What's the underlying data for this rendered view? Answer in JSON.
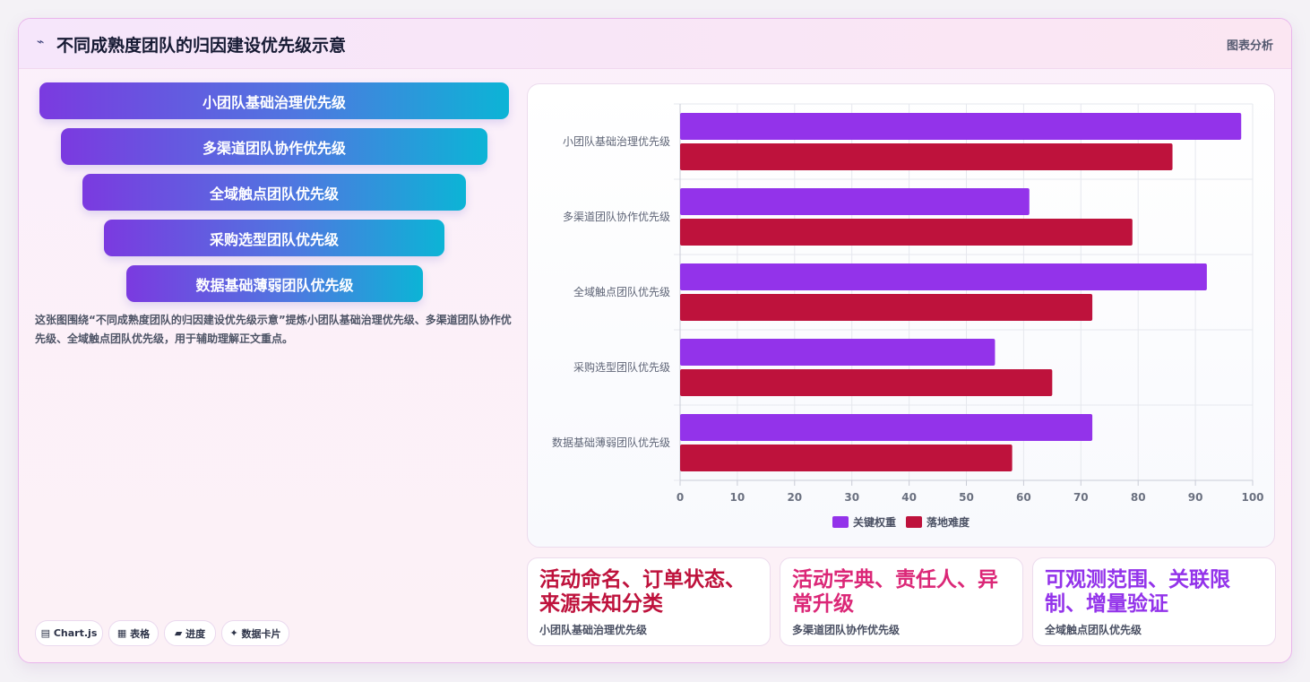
{
  "header": {
    "icon": "⌁",
    "title": "不同成熟度团队的归因建设优先级示意",
    "right_label": "图表分析"
  },
  "funnel": {
    "items": [
      "小团队基础治理优先级",
      "多渠道团队协作优先级",
      "全域触点团队优先级",
      "采购选型团队优先级",
      "数据基础薄弱团队优先级"
    ]
  },
  "description": "这张图围绕“不同成熟度团队的归因建设优先级示意”提炼小团队基础治理优先级、多渠道团队协作优先级、全域触点团队优先级，用于辅助理解正文重点。",
  "chips": [
    {
      "icon": "▤",
      "label": "Chart.js"
    },
    {
      "icon": "▦",
      "label": "表格"
    },
    {
      "icon": "▰",
      "label": "进度"
    },
    {
      "icon": "✦",
      "label": "数据卡片"
    }
  ],
  "chart_data": {
    "type": "bar",
    "orientation": "horizontal",
    "categories": [
      "小团队基础治理优先级",
      "多渠道团队协作优先级",
      "全域触点团队优先级",
      "采购选型团队优先级",
      "数据基础薄弱团队优先级"
    ],
    "series": [
      {
        "name": "关键权重",
        "color": "#9333ea",
        "values": [
          98,
          61,
          92,
          55,
          72
        ]
      },
      {
        "name": "落地难度",
        "color": "#be123c",
        "values": [
          86,
          79,
          72,
          65,
          58
        ]
      }
    ],
    "xlim": [
      0,
      100
    ],
    "xticks": [
      0,
      10,
      20,
      30,
      40,
      50,
      60,
      70,
      80,
      90,
      100
    ],
    "grid": true,
    "legend": "bottom"
  },
  "stats": [
    {
      "value": "活动命名、订单状态、来源未知分类",
      "label": "小团队基础治理优先级",
      "color": "#be123c"
    },
    {
      "value": "活动字典、责任人、异常升级",
      "label": "多渠道团队协作优先级",
      "color": "#db2777"
    },
    {
      "value": "可观测范围、关联限制、增量验证",
      "label": "全域触点团队优先级",
      "color": "#9333ea"
    }
  ]
}
